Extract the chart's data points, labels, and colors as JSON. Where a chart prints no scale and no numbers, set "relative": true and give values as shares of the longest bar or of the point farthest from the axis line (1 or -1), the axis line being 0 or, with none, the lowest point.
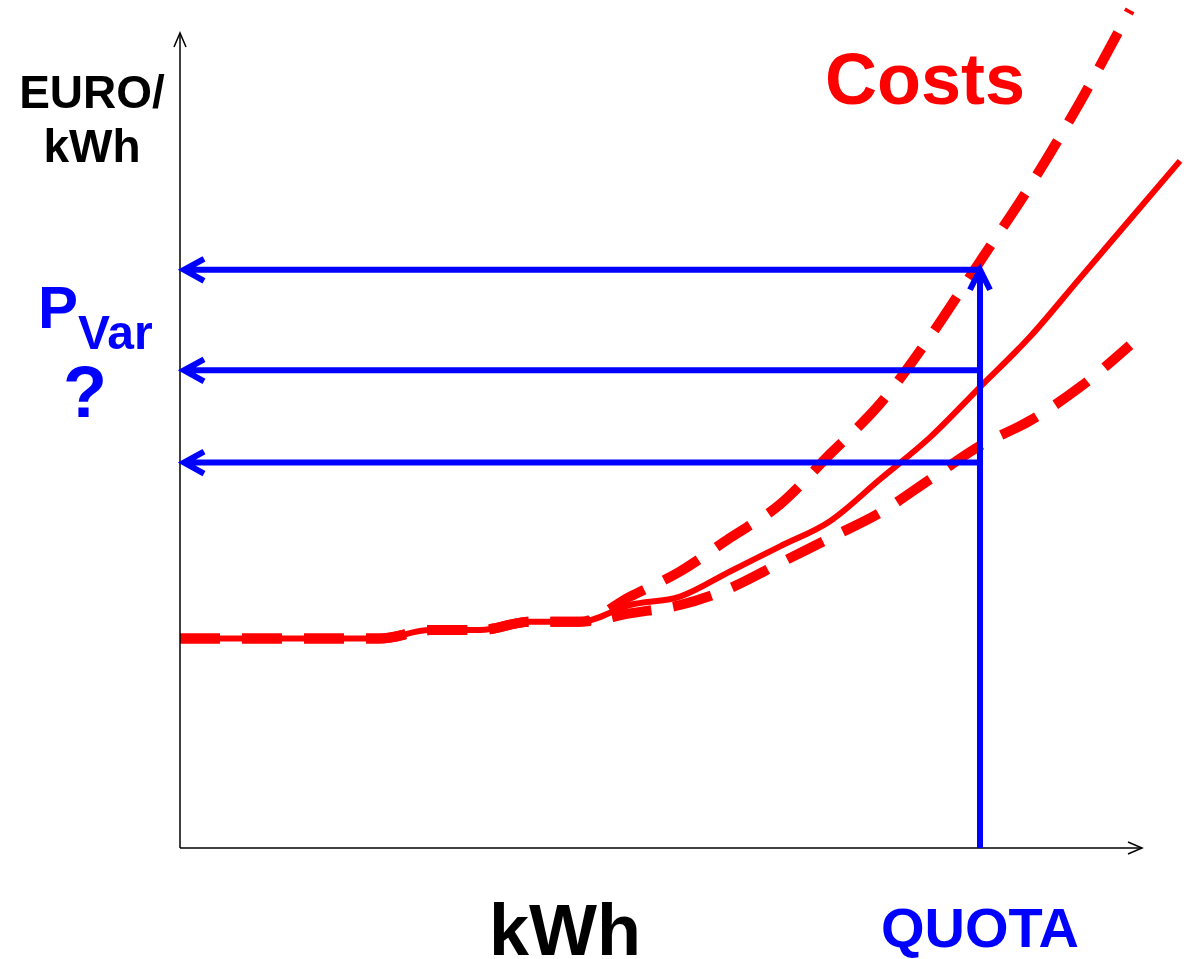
{
  "chart_data": {
    "type": "line",
    "relative": true,
    "ylabel": "EURO/kWh",
    "xlabel": "kWh",
    "categories": [
      null,
      null,
      null,
      null,
      null,
      null,
      null,
      null,
      null,
      null,
      null,
      null,
      null,
      null,
      null,
      null,
      null,
      null,
      null,
      null,
      null
    ],
    "series": [
      {
        "color": "#ff0000",
        "line_style": "solid",
        "values": [
          0.25,
          0.25,
          0.25,
          0.25,
          0.25,
          0.26,
          0.26,
          0.27,
          0.27,
          0.29,
          0.3,
          0.33,
          0.36,
          0.39,
          0.44,
          0.49,
          0.55,
          0.61,
          0.68,
          0.75,
          0.82
        ]
      },
      {
        "color": "#ff0000",
        "line_style": "dashed",
        "values": [
          0.25,
          0.25,
          0.25,
          0.25,
          0.25,
          0.26,
          0.26,
          0.27,
          0.27,
          0.3,
          0.33,
          0.37,
          0.41,
          0.47,
          0.53,
          0.61,
          0.7,
          0.79,
          0.89,
          1.0,
          null
        ]
      },
      {
        "color": "#ff0000",
        "line_style": "dashed",
        "values": [
          0.25,
          0.25,
          0.25,
          0.25,
          0.25,
          0.26,
          0.26,
          0.27,
          0.27,
          0.28,
          0.29,
          0.31,
          0.34,
          0.37,
          0.4,
          0.44,
          0.48,
          0.51,
          0.55,
          0.6,
          null
        ]
      }
    ],
    "ref_lines": [
      {
        "axis": "y",
        "value": 0.69,
        "label": null,
        "color": "#0000ff"
      },
      {
        "axis": "y",
        "value": 0.57,
        "label": null,
        "color": "#0000ff"
      },
      {
        "axis": "y",
        "value": 0.46,
        "label": null,
        "color": "#0000ff"
      }
    ],
    "annotations": [
      "Costs",
      "P$_{Var}$ ?",
      "QUOTA"
    ]
  }
}
